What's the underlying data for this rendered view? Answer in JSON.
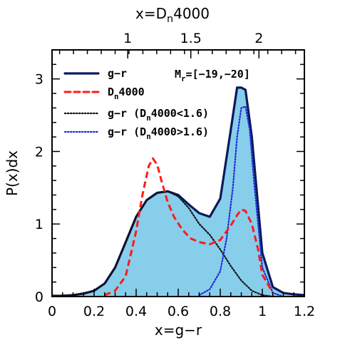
{
  "chart_data": {
    "type": "area",
    "title": "",
    "xlabel": "x=g−r",
    "ylabel": "P(x)dx",
    "top_xlabel": "x=D",
    "top_xlabel_sub": "n",
    "top_xlabel_tail": "4000",
    "xlim": [
      0,
      1.2
    ],
    "ylim": [
      0,
      3.4
    ],
    "xticks": [
      0,
      0.2,
      0.4,
      0.6,
      0.8,
      1,
      1.2
    ],
    "xtick_labels": [
      "0",
      "0.2",
      "0.4",
      "0.6",
      "0.8",
      "1",
      "1.2"
    ],
    "yticks": [
      0,
      1,
      2,
      3
    ],
    "ytick_labels": [
      "0",
      "1",
      "2",
      "3"
    ],
    "top_ticks_frac": [
      0.3,
      0.55,
      0.82
    ],
    "top_tick_labels": [
      "1",
      "1.5",
      "2"
    ],
    "grid": false,
    "legend_position": "top-left",
    "annotation": {
      "text_pre": "M",
      "text_sub": "r",
      "text_post": "=[−19,−20]"
    },
    "colors": {
      "fill": "#87CEEB",
      "g_r": "#0b1a5c",
      "dn4000": "#ff1a1a",
      "g_r_low": "#111111",
      "g_r_high": "#1f2bd6"
    },
    "series": [
      {
        "name": "g−r",
        "style": "solid",
        "x": [
          0.0,
          0.05,
          0.1,
          0.15,
          0.2,
          0.25,
          0.3,
          0.35,
          0.4,
          0.45,
          0.5,
          0.55,
          0.6,
          0.65,
          0.7,
          0.75,
          0.8,
          0.85,
          0.88,
          0.9,
          0.92,
          0.95,
          1.0,
          1.05,
          1.1,
          1.15,
          1.2
        ],
        "y": [
          0.01,
          0.01,
          0.02,
          0.04,
          0.08,
          0.18,
          0.4,
          0.75,
          1.1,
          1.33,
          1.43,
          1.45,
          1.4,
          1.27,
          1.15,
          1.1,
          1.35,
          2.3,
          2.88,
          2.88,
          2.85,
          2.2,
          0.6,
          0.13,
          0.05,
          0.03,
          0.02
        ]
      },
      {
        "name_pre": "D",
        "name_sub": "n",
        "name_post": "4000",
        "style": "dashed",
        "x": [
          0.25,
          0.3,
          0.35,
          0.4,
          0.43,
          0.46,
          0.48,
          0.5,
          0.52,
          0.55,
          0.58,
          0.62,
          0.66,
          0.7,
          0.75,
          0.8,
          0.85,
          0.88,
          0.9,
          0.92,
          0.95,
          0.98,
          1.0,
          1.05
        ],
        "y": [
          0.02,
          0.08,
          0.28,
          0.9,
          1.4,
          1.8,
          1.9,
          1.82,
          1.6,
          1.3,
          1.1,
          0.92,
          0.8,
          0.75,
          0.72,
          0.78,
          0.98,
          1.12,
          1.2,
          1.18,
          1.0,
          0.65,
          0.3,
          0.05
        ]
      },
      {
        "name_pre": "g−r  (D",
        "name_sub": "n",
        "name_post": "4000<1.6)",
        "style": "dotted",
        "x": [
          0.0,
          0.1,
          0.2,
          0.25,
          0.3,
          0.35,
          0.4,
          0.45,
          0.5,
          0.55,
          0.6,
          0.65,
          0.7,
          0.75,
          0.8,
          0.85,
          0.9,
          0.95,
          1.0,
          1.05
        ],
        "y": [
          0.01,
          0.02,
          0.08,
          0.18,
          0.4,
          0.75,
          1.1,
          1.33,
          1.43,
          1.45,
          1.38,
          1.22,
          1.0,
          0.85,
          0.65,
          0.42,
          0.22,
          0.08,
          0.02,
          0.0
        ]
      },
      {
        "name_pre": "g−r  (D",
        "name_sub": "n",
        "name_post": "4000>1.6)",
        "style": "dotted",
        "x": [
          0.7,
          0.75,
          0.8,
          0.83,
          0.86,
          0.88,
          0.9,
          0.92,
          0.94,
          0.96,
          1.0,
          1.05,
          1.1
        ],
        "y": [
          0.02,
          0.1,
          0.35,
          0.8,
          1.5,
          2.2,
          2.6,
          2.62,
          2.3,
          1.6,
          0.4,
          0.05,
          0.0
        ]
      }
    ]
  }
}
